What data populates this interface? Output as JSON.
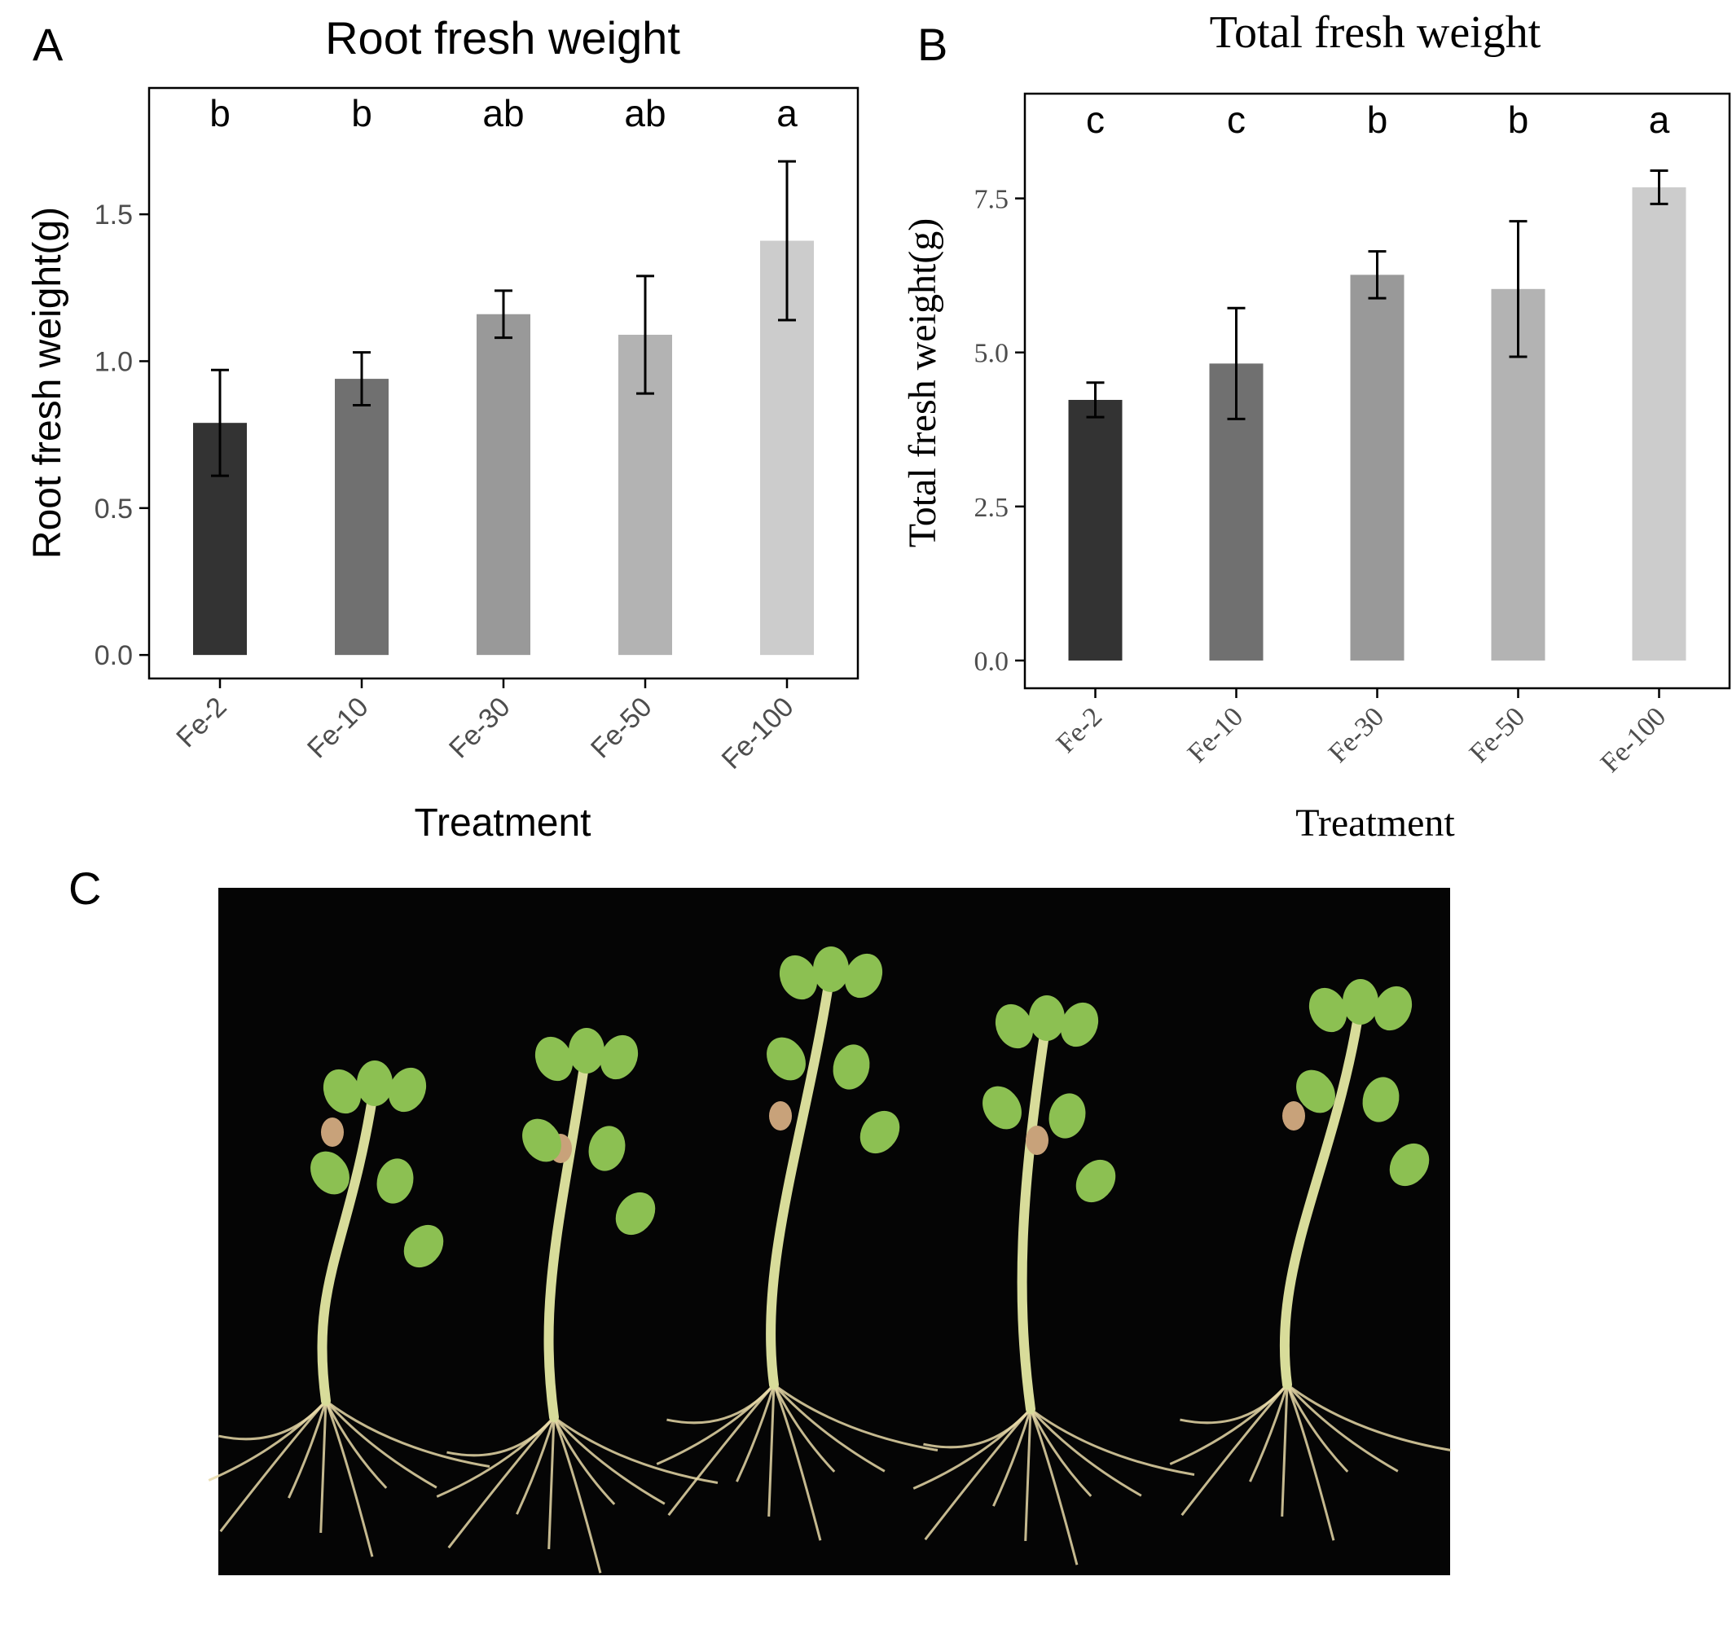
{
  "panel_labels": {
    "a": "A",
    "b": "B",
    "c": "C"
  },
  "colors": {
    "bars": [
      "#333333",
      "#707070",
      "#999999",
      "#b3b3b3",
      "#cccccc"
    ],
    "frame": "#000000",
    "photo_background": "#050505",
    "stem": "#d8dc9a",
    "leaf": "#8cc052",
    "root": "#e8d9a8"
  },
  "chart_data": [
    {
      "type": "bar",
      "title": "Root fresh weight",
      "xlabel": "Treatment",
      "ylabel": "Root fresh weight(g)",
      "categories": [
        "Fe-2",
        "Fe-10",
        "Fe-30",
        "Fe-50",
        "Fe-100"
      ],
      "values": [
        0.79,
        0.94,
        1.16,
        1.09,
        1.41
      ],
      "errors": [
        0.18,
        0.09,
        0.08,
        0.2,
        0.27
      ],
      "significance": [
        "b",
        "b",
        "ab",
        "ab",
        "a"
      ],
      "ylim": [
        -0.08,
        1.93
      ],
      "yticks": [
        0.0,
        0.5,
        1.0,
        1.5
      ],
      "ytick_labels": [
        "0.0",
        "0.5",
        "1.0",
        "1.5"
      ],
      "grid": false,
      "legend": "none"
    },
    {
      "type": "bar",
      "title": "Total fresh weight",
      "xlabel": "Treatment",
      "ylabel": "Total fresh weight(g)",
      "categories": [
        "Fe-2",
        "Fe-10",
        "Fe-30",
        "Fe-50",
        "Fe-100"
      ],
      "values": [
        4.23,
        4.82,
        6.26,
        6.03,
        7.68
      ],
      "errors": [
        0.28,
        0.9,
        0.38,
        1.1,
        0.27
      ],
      "significance": [
        "c",
        "c",
        "b",
        "b",
        "a"
      ],
      "ylim": [
        -0.45,
        9.2
      ],
      "yticks": [
        0.0,
        2.5,
        5.0,
        7.5
      ],
      "ytick_labels": [
        "0.0",
        "2.5",
        "5.0",
        "7.5"
      ],
      "grid": false,
      "legend": "none"
    }
  ]
}
